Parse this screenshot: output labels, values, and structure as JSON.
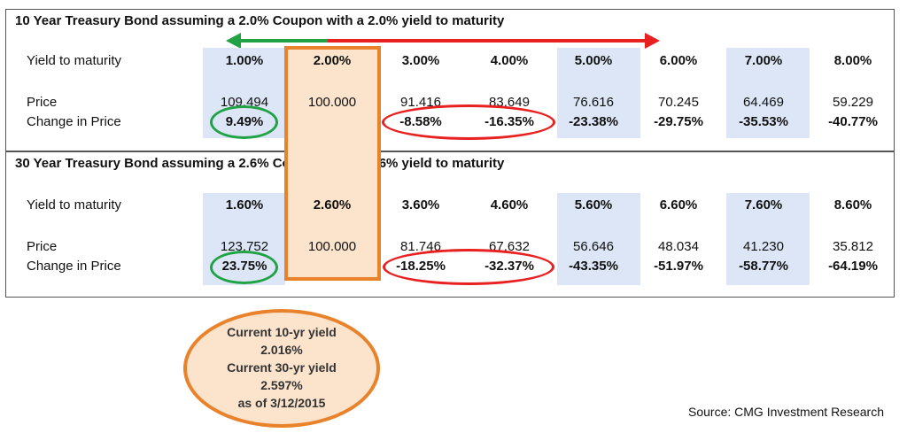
{
  "bond10": {
    "title": "10 Year Treasury Bond assuming a 2.0% Coupon with a 2.0% yield to maturity",
    "labels": {
      "ytm": "Yield to maturity",
      "price": "Price",
      "change": "Change in Price"
    },
    "ytm": [
      "1.00%",
      "2.00%",
      "3.00%",
      "4.00%",
      "5.00%",
      "6.00%",
      "7.00%",
      "8.00%"
    ],
    "price": [
      "109.494",
      "100.000",
      "91.416",
      "83.649",
      "76.616",
      "70.245",
      "64.469",
      "59.229"
    ],
    "change": [
      "9.49%",
      "",
      "-8.58%",
      "-16.35%",
      "-23.38%",
      "-29.75%",
      "-35.53%",
      "-40.77%"
    ]
  },
  "bond30": {
    "title": "30 Year Treasury Bond assuming a 2.6% Coupon with a 2.6% yield to maturity",
    "labels": {
      "ytm": "Yield to maturity",
      "price": "Price",
      "change": "Change in Price"
    },
    "ytm": [
      "1.60%",
      "2.60%",
      "3.60%",
      "4.60%",
      "5.60%",
      "6.60%",
      "7.60%",
      "8.60%"
    ],
    "price": [
      "123.752",
      "100.000",
      "81.746",
      "67.632",
      "56.646",
      "48.034",
      "41.230",
      "35.812"
    ],
    "change": [
      "23.75%",
      "",
      "-18.25%",
      "-32.37%",
      "-43.35%",
      "-51.97%",
      "-58.77%",
      "-64.19%"
    ]
  },
  "callout": {
    "line1": "Current 10-yr yield",
    "line2": "2.016%",
    "line3": "Current 30-yr yield",
    "line4": "2.597%",
    "line5": "as of 3/12/2015"
  },
  "source": "Source: CMG Investment Research",
  "colors": {
    "shade": "#dce6f7",
    "orange": "#e8822b",
    "green": "#20a245",
    "red": "#e82020"
  }
}
